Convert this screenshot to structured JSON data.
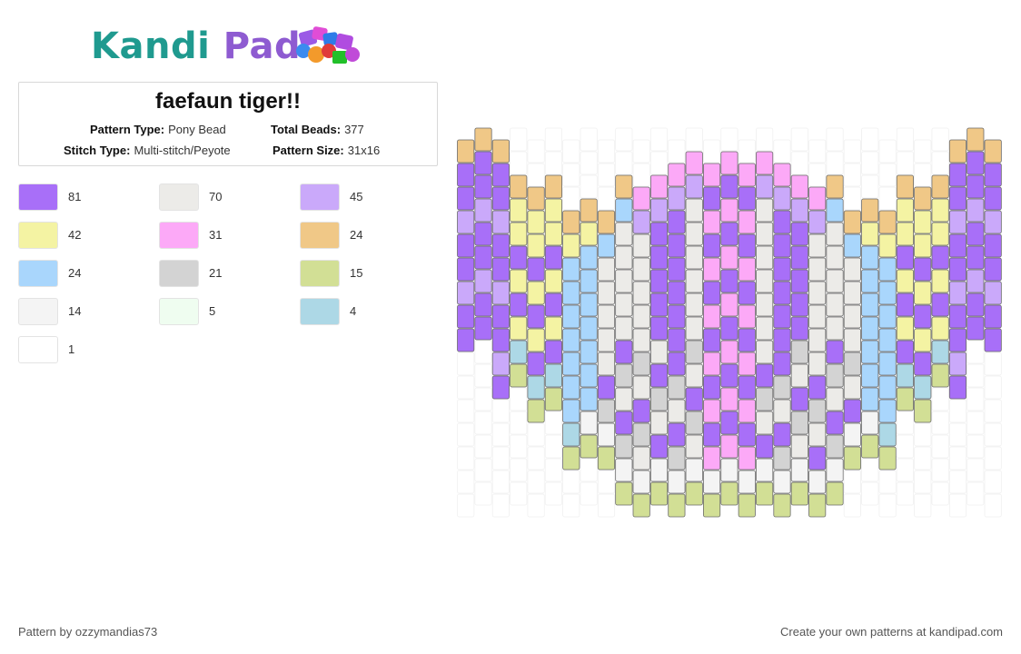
{
  "brand": {
    "name_part1": "Kandi",
    "name_part2": "Pad",
    "primary_color": "#1f9a8f",
    "secondary_color": "#8e5bd1"
  },
  "pattern": {
    "title": "faefaun tiger!!",
    "pattern_type_label": "Pattern Type:",
    "pattern_type": "Pony Bead",
    "total_beads_label": "Total Beads:",
    "total_beads": "377",
    "stitch_type_label": "Stitch Type:",
    "stitch_type": "Multi-stitch/Peyote",
    "pattern_size_label": "Pattern Size:",
    "pattern_size": "31x16"
  },
  "legend": [
    {
      "color": "#a86ff8",
      "count": "81"
    },
    {
      "color": "#ecebe8",
      "count": "70"
    },
    {
      "color": "#caa9fa",
      "count": "45"
    },
    {
      "color": "#f4f3a3",
      "count": "42"
    },
    {
      "color": "#fca9f7",
      "count": "31"
    },
    {
      "color": "#f0c887",
      "count": "24"
    },
    {
      "color": "#a9d6fc",
      "count": "24"
    },
    {
      "color": "#d3d3d3",
      "count": "21"
    },
    {
      "color": "#d2df95",
      "count": "15"
    },
    {
      "color": "#f4f4f4",
      "count": "14"
    },
    {
      "color": "#effdf0",
      "count": "5"
    },
    {
      "color": "#add8e6",
      "count": "4"
    },
    {
      "color": "#ffffff",
      "count": "1"
    }
  ],
  "footer": {
    "credit": "Pattern by ozzymandias73",
    "cta": "Create your own patterns at kandipad.com"
  }
}
